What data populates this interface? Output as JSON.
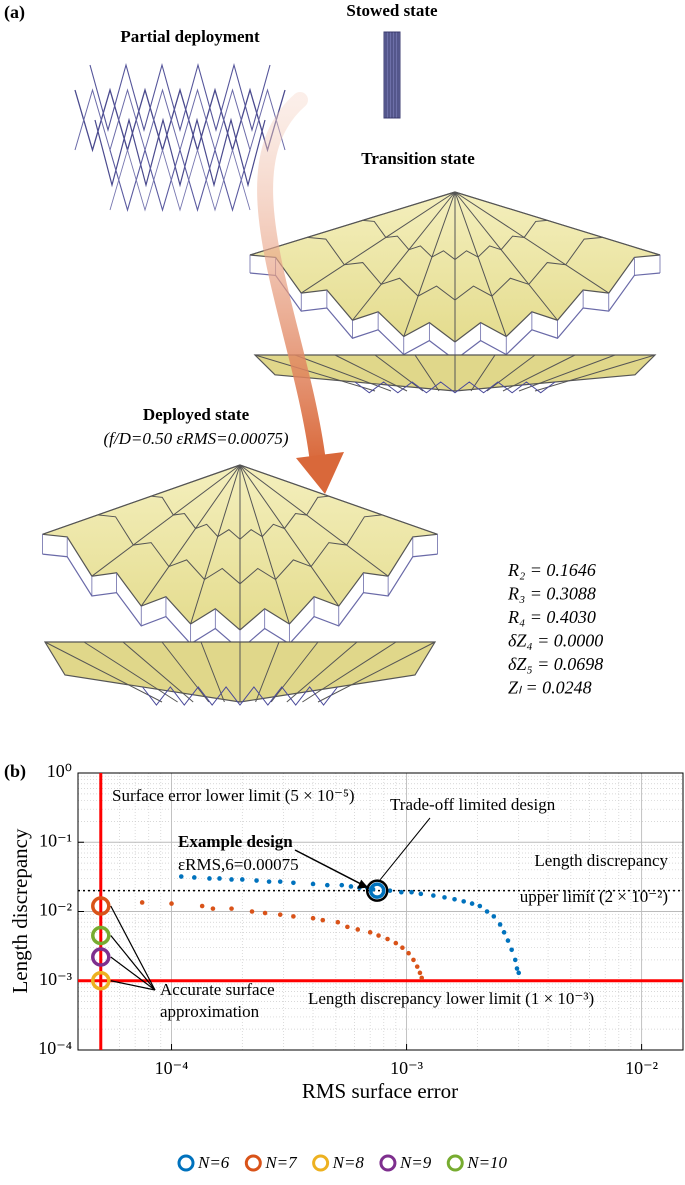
{
  "panel_a": {
    "label": "(a)",
    "stowed": "Stowed state",
    "partial": "Partial deployment",
    "transition": "Transition state",
    "deployed": "Deployed state",
    "deployed_params": "(f/D=0.50 εRMS=0.00075)",
    "parameters": [
      "R₂ = 0.1646",
      "R₃ = 0.3088",
      "R₄ = 0.4030",
      "δZ₄ = 0.0000",
      "δZ₅ = 0.0698",
      "Zₗ = 0.0248"
    ]
  },
  "panel_b_label": "(b)",
  "chart_data": {
    "type": "scatter",
    "xlabel": "RMS surface error",
    "ylabel": "Length discrepancy",
    "xscale": "log",
    "yscale": "log",
    "grid": true,
    "xlim": [
      4e-05,
      0.015
    ],
    "ylim": [
      0.0001,
      1
    ],
    "xticks": [
      {
        "value": 0.0001,
        "label": "10⁻⁴"
      },
      {
        "value": 0.001,
        "label": "10⁻³"
      },
      {
        "value": 0.01,
        "label": "10⁻²"
      }
    ],
    "yticks": [
      {
        "value": 0.0001,
        "label": "10⁻⁴"
      },
      {
        "value": 0.001,
        "label": "10⁻³"
      },
      {
        "value": 0.01,
        "label": "10⁻²"
      },
      {
        "value": 0.1,
        "label": "10⁻¹"
      },
      {
        "value": 1,
        "label": "10⁰"
      }
    ],
    "legend": "bottom",
    "series": [
      {
        "name": "N=6",
        "color": "#0072bd",
        "x": [
          0.00011,
          0.000125,
          0.000145,
          0.00016,
          0.00018,
          0.0002,
          0.00023,
          0.00026,
          0.00029,
          0.00033,
          0.0004,
          0.00046,
          0.00053,
          0.00058,
          0.00063,
          0.00068,
          0.00072,
          0.00085,
          0.00095,
          0.00105,
          0.00115,
          0.0013,
          0.00145,
          0.0016,
          0.00175,
          0.0019,
          0.00205,
          0.0022,
          0.00235,
          0.0025,
          0.0026,
          0.0027,
          0.0028,
          0.0029,
          0.00295,
          0.003
        ],
        "values": [
          0.032,
          0.031,
          0.03,
          0.03,
          0.029,
          0.029,
          0.028,
          0.027,
          0.027,
          0.026,
          0.025,
          0.024,
          0.024,
          0.023,
          0.022,
          0.022,
          0.021,
          0.02,
          0.019,
          0.019,
          0.018,
          0.017,
          0.016,
          0.015,
          0.014,
          0.013,
          0.012,
          0.01,
          0.0085,
          0.0065,
          0.005,
          0.0038,
          0.0028,
          0.002,
          0.0015,
          0.0013
        ],
        "circle": [
          0.00075,
          0.02
        ]
      },
      {
        "name": "N=7",
        "color": "#d95319",
        "x": [
          7.5e-05,
          0.0001,
          0.000135,
          0.00015,
          0.00018,
          0.00022,
          0.00025,
          0.00029,
          0.00033,
          0.0004,
          0.00044,
          0.00051,
          0.00056,
          0.00062,
          0.0007,
          0.00076,
          0.00083,
          0.0009,
          0.00096,
          0.00102,
          0.00107,
          0.00111,
          0.00114,
          0.00116
        ],
        "values": [
          0.0135,
          0.013,
          0.012,
          0.011,
          0.011,
          0.01,
          0.0095,
          0.009,
          0.0085,
          0.008,
          0.0075,
          0.007,
          0.006,
          0.0055,
          0.005,
          0.0045,
          0.004,
          0.0035,
          0.003,
          0.0025,
          0.002,
          0.0016,
          0.0013,
          0.0011
        ],
        "circle": [
          5e-05,
          0.012
        ]
      },
      {
        "name": "N=8",
        "color": "#edb120",
        "x": [],
        "values": [],
        "circle": [
          5e-05,
          0.001
        ]
      },
      {
        "name": "N=9",
        "color": "#7e2f8e",
        "x": [],
        "values": [],
        "circle": [
          5e-05,
          0.0022
        ]
      },
      {
        "name": "N=10",
        "color": "#77ac30",
        "x": [],
        "values": [],
        "circle": [
          5e-05,
          0.0045
        ]
      }
    ],
    "reference_lines": [
      {
        "axis": "x",
        "value": 5e-05,
        "color": "#ff0000",
        "style": "solid",
        "label": "Surface error lower limit (5 × 10⁻⁵)"
      },
      {
        "axis": "y",
        "value": 0.001,
        "color": "#ff0000",
        "style": "solid",
        "label": "Length discrepancy lower limit (1 × 10⁻³)"
      },
      {
        "axis": "y",
        "value": 0.02,
        "color": "#000000",
        "style": "dotted",
        "label": [
          "Length discrepancy",
          "upper limit (2 × 10⁻²)"
        ]
      }
    ],
    "annotations": [
      "Example design",
      "εRMS,6=0.00075",
      "Trade-off limited design",
      "Accurate surface",
      "approximation"
    ]
  }
}
